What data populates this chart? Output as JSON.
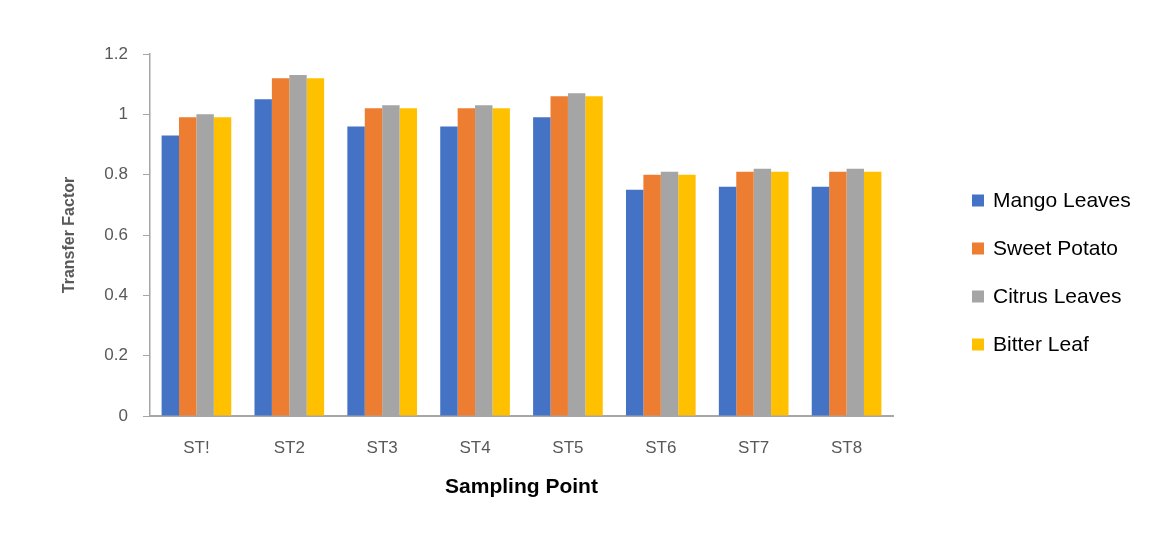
{
  "chart_data": {
    "type": "bar",
    "xlabel": "Sampling Point",
    "ylabel": "Transfer Factor",
    "categories": [
      "ST!",
      "ST2",
      "ST3",
      "ST4",
      "ST5",
      "ST6",
      "ST7",
      "ST8"
    ],
    "series": [
      {
        "name": "Mango Leaves",
        "color": "#4472c4",
        "values": [
          0.93,
          1.05,
          0.96,
          0.96,
          0.99,
          0.75,
          0.76,
          0.76
        ]
      },
      {
        "name": "Sweet Potato",
        "color": "#ed7d31",
        "values": [
          0.99,
          1.12,
          1.02,
          1.02,
          1.06,
          0.8,
          0.81,
          0.81
        ]
      },
      {
        "name": "Citrus Leaves",
        "color": "#a5a5a5",
        "values": [
          1.0,
          1.13,
          1.03,
          1.03,
          1.07,
          0.81,
          0.82,
          0.82
        ]
      },
      {
        "name": "Bitter Leaf",
        "color": "#ffc000",
        "values": [
          0.99,
          1.12,
          1.02,
          1.02,
          1.06,
          0.8,
          0.81,
          0.81
        ]
      }
    ],
    "ylim": [
      0,
      1.2
    ],
    "yticks": [
      0,
      0.2,
      0.4,
      0.6,
      0.8,
      1,
      1.2
    ],
    "grid": false,
    "legend": "right"
  }
}
